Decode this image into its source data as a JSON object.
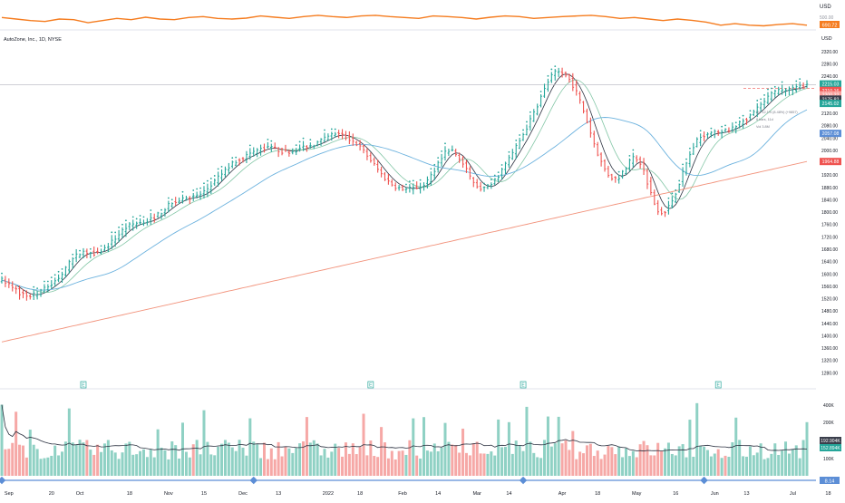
{
  "chart_title": "AutoZone, Inc., 1D, NYSE",
  "usd_label": "USD",
  "top_pane": {
    "currency": "USD",
    "value_label": "690.72",
    "legend_hint": "500.00",
    "line_color": "#f57c1f",
    "values": [
      0.55,
      0.5,
      0.45,
      0.42,
      0.5,
      0.48,
      0.38,
      0.45,
      0.52,
      0.48,
      0.56,
      0.5,
      0.48,
      0.55,
      0.58,
      0.52,
      0.5,
      0.53,
      0.6,
      0.56,
      0.52,
      0.58,
      0.62,
      0.58,
      0.55,
      0.6,
      0.62,
      0.58,
      0.55,
      0.52,
      0.6,
      0.58,
      0.55,
      0.5,
      0.56,
      0.6,
      0.58,
      0.52,
      0.55,
      0.58,
      0.6,
      0.62,
      0.58,
      0.52,
      0.55,
      0.5,
      0.45,
      0.5,
      0.46,
      0.4,
      0.3,
      0.35,
      0.3,
      0.28,
      0.32,
      0.35,
      0.3
    ]
  },
  "chart_data": {
    "type": "bar",
    "title": "AutoZone, Inc., 1D, NYSE",
    "currency": "USD",
    "ylim": [
      1240,
      2340
    ],
    "y_ticks": [
      2320,
      2280,
      2240,
      2200,
      2160,
      2120,
      2080,
      2040,
      2000,
      1960,
      1920,
      1880,
      1840,
      1800,
      1760,
      1720,
      1680,
      1640,
      1600,
      1560,
      1520,
      1480,
      1440,
      1400,
      1360,
      1320,
      1280
    ],
    "x_ticks": [
      {
        "label": "Sep",
        "i": 2
      },
      {
        "label": "20",
        "i": 14
      },
      {
        "label": "Oct",
        "i": 22
      },
      {
        "label": "18",
        "i": 36
      },
      {
        "label": "Nov",
        "i": 47
      },
      {
        "label": "15",
        "i": 57
      },
      {
        "label": "Dec",
        "i": 68
      },
      {
        "label": "13",
        "i": 78
      },
      {
        "label": "2022",
        "i": 92
      },
      {
        "label": "18",
        "i": 101
      },
      {
        "label": "Feb",
        "i": 113
      },
      {
        "label": "14",
        "i": 123
      },
      {
        "label": "Mar",
        "i": 134
      },
      {
        "label": "14",
        "i": 143
      },
      {
        "label": "Apr",
        "i": 158
      },
      {
        "label": "18",
        "i": 168
      },
      {
        "label": "May",
        "i": 179
      },
      {
        "label": "16",
        "i": 190
      },
      {
        "label": "Jun",
        "i": 201
      },
      {
        "label": "13",
        "i": 210
      },
      {
        "label": "Jul",
        "i": 223
      },
      {
        "label": "18",
        "i": 233
      }
    ],
    "closes": [
      1580,
      1573,
      1566,
      1558,
      1549,
      1538,
      1535,
      1530,
      1531,
      1532,
      1537,
      1542,
      1551,
      1560,
      1568,
      1576,
      1587,
      1601,
      1617,
      1633,
      1648,
      1659,
      1666,
      1670,
      1670,
      1669,
      1668,
      1670,
      1675,
      1682,
      1693,
      1704,
      1716,
      1728,
      1740,
      1750,
      1756,
      1761,
      1765,
      1766,
      1768,
      1772,
      1777,
      1784,
      1792,
      1801,
      1812,
      1821,
      1829,
      1836,
      1840,
      1844,
      1847,
      1848,
      1849,
      1853,
      1858,
      1866,
      1876,
      1887,
      1899,
      1911,
      1924,
      1936,
      1947,
      1957,
      1965,
      1972,
      1977,
      1982,
      1988,
      1994,
      2000,
      2005,
      2008,
      2010,
      2008,
      2004,
      2000,
      1997,
      1996,
      1997,
      1999,
      2002,
      2006,
      2010,
      2013,
      2016,
      2020,
      2025,
      2031,
      2037,
      2044,
      2050,
      2053,
      2052,
      2048,
      2043,
      2037,
      2030,
      2021,
      2010,
      1997,
      1983,
      1968,
      1953,
      1938,
      1923,
      1910,
      1899,
      1890,
      1883,
      1878,
      1876,
      1876,
      1877,
      1878,
      1880,
      1883,
      1890,
      1902,
      1918,
      1938,
      1960,
      1980,
      1994,
      2000,
      1997,
      1988,
      1973,
      1955,
      1935,
      1915,
      1899,
      1886,
      1879,
      1877,
      1881,
      1890,
      1903,
      1919,
      1937,
      1955,
      1974,
      1992,
      2011,
      2031,
      2052,
      2074,
      2097,
      2122,
      2147,
      2173,
      2198,
      2222,
      2240,
      2251,
      2254,
      2250,
      2242,
      2229,
      2211,
      2188,
      2160,
      2128,
      2093,
      2057,
      2022,
      1990,
      1962,
      1939,
      1922,
      1912,
      1909,
      1914,
      1926,
      1943,
      1962,
      1974,
      1974,
      1960,
      1933,
      1898,
      1860,
      1828,
      1808,
      1800,
      1804,
      1817,
      1838,
      1864,
      1894,
      1926,
      1957,
      1986,
      2011,
      2030,
      2043,
      2051,
      2055,
      2056,
      2056,
      2057,
      2059,
      2063,
      2068,
      2074,
      2081,
      2088,
      2096,
      2104,
      2113,
      2123,
      2134,
      2146,
      2158,
      2170,
      2181,
      2189,
      2194,
      2196,
      2197,
      2198,
      2199,
      2202,
      2207,
      2212,
      2216
    ],
    "price_tags": [
      {
        "label": "2215.03",
        "color": "#26a69a",
        "value": 2215
      },
      {
        "label": "2210.16",
        "color": "#ef5350",
        "value": 2194
      },
      {
        "label": "2200.22",
        "color": "#f8a29e",
        "value": 2180
      },
      {
        "label": "2175.82",
        "color": "#3b3f4c",
        "value": 2166
      },
      {
        "label": "2145.02",
        "color": "#26a69a",
        "value": 2152
      },
      {
        "label": "2057.08",
        "color": "#5c8ed6",
        "value": 2055
      },
      {
        "label": "1964.88",
        "color": "#ef5350",
        "value": 1964
      }
    ],
    "annotations": [
      "Vol 12.1% (8.48%) (+9857)",
      "8 bars, 11d",
      "Vol 3.8M"
    ],
    "earnings_marks": [
      {
        "label": "E",
        "i": 23
      },
      {
        "label": "E",
        "i": 104
      },
      {
        "label": "E",
        "i": 147
      },
      {
        "label": "E",
        "i": 202
      }
    ],
    "volume": {
      "y_ticks": [
        "400K",
        "200K",
        "100K"
      ],
      "tags": [
        {
          "label": "192.904K",
          "color": "#3b3f4c"
        },
        {
          "label": "152.894K",
          "color": "#26a69a"
        }
      ]
    },
    "bottom_tag": "8.14"
  },
  "colors": {
    "up": "#26a69a",
    "down": "#ef5350",
    "ma_fast": "#2b3140",
    "ma_mid": "#83c6a6",
    "ma_slow": "#6cb2de",
    "ma_long": "#f2937c",
    "marker": "#5c8ed6"
  }
}
